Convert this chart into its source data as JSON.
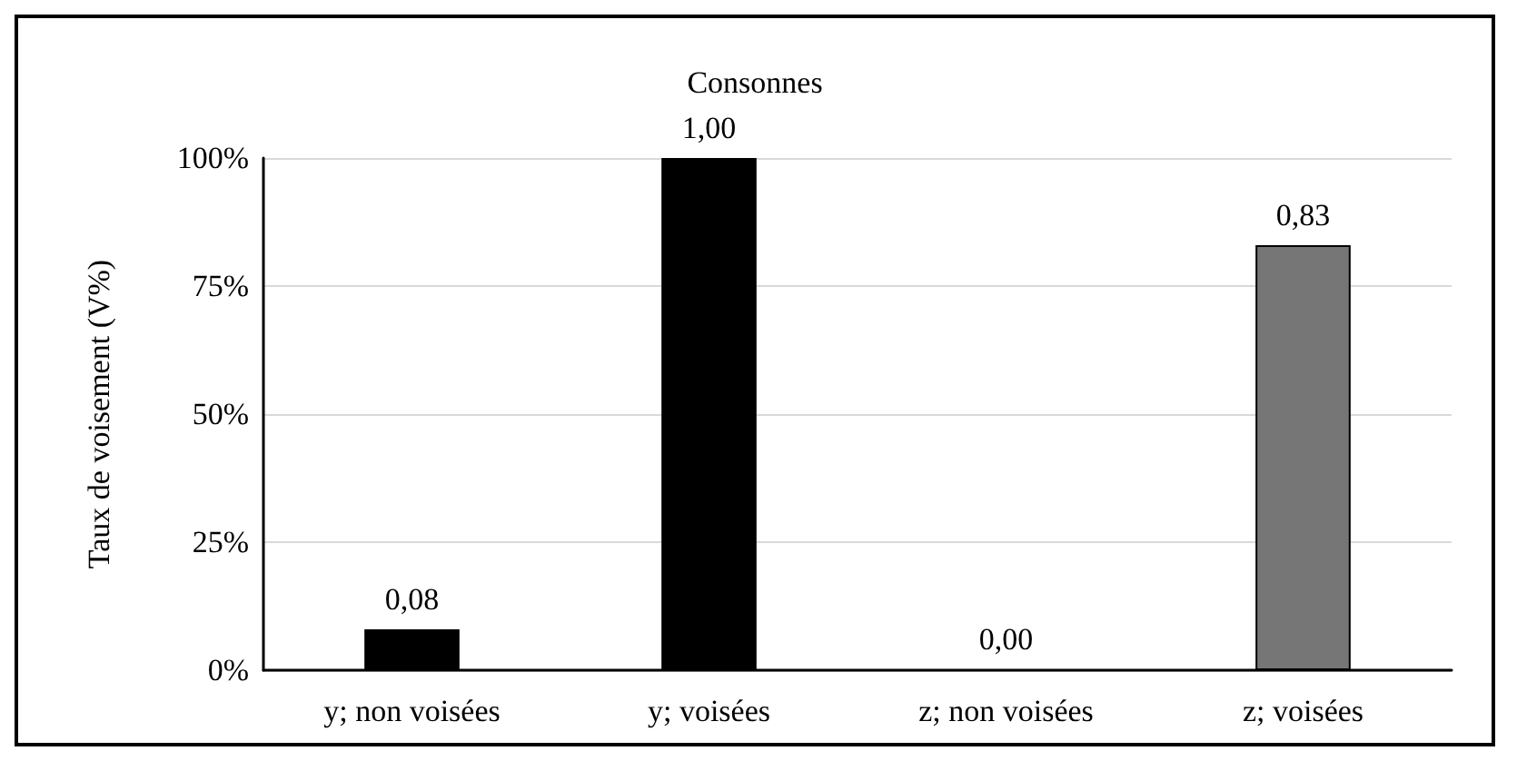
{
  "chart_data": {
    "type": "bar",
    "title": "Consonnes",
    "ylabel": "Taux de voisement (V%)",
    "categories": [
      "y; non voisées",
      "y; voisées",
      "z; non voisées",
      "z; voisées"
    ],
    "values": [
      0.08,
      1.0,
      0.0,
      0.83
    ],
    "colors": [
      "#000000",
      "#000000",
      "#000000",
      "#767676"
    ],
    "value_labels": [
      "0,08",
      "1,00",
      "0,00",
      "0,83"
    ],
    "ylim": [
      0,
      1
    ],
    "yticks": [
      {
        "value": 0,
        "label": "0%"
      },
      {
        "value": 0.25,
        "label": "25%"
      },
      {
        "value": 0.5,
        "label": "50%"
      },
      {
        "value": 0.75,
        "label": "75%"
      },
      {
        "value": 1,
        "label": "100%"
      }
    ],
    "grid": "y"
  }
}
